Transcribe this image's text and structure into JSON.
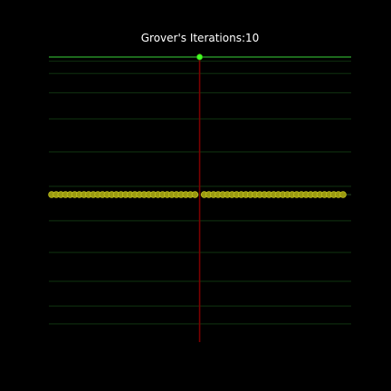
{
  "chart_data": {
    "type": "scatter",
    "title": "Grover's Iterations:10",
    "xlabel": "",
    "ylabel": "",
    "grid": true,
    "xlim": [
      0,
      63
    ],
    "ylim": [
      -1.0,
      1.0
    ],
    "marked_state": 32,
    "grid_levels": [
      0.97,
      0.88,
      0.74,
      0.55,
      0.31,
      0.06,
      -0.19,
      -0.42,
      -0.63,
      -0.81,
      -0.94
    ],
    "series": [
      {
        "x": [
          0,
          1,
          2,
          3,
          4,
          5,
          6,
          7,
          8,
          9,
          10,
          11,
          12,
          13,
          14,
          15,
          16,
          17,
          18,
          19,
          20,
          21,
          22,
          23,
          24,
          25,
          26,
          27,
          28,
          29,
          30,
          31,
          33,
          34,
          35,
          36,
          37,
          38,
          39,
          40,
          41,
          42,
          43,
          44,
          45,
          46,
          47,
          48,
          49,
          50,
          51,
          52,
          53,
          54,
          55,
          56,
          57,
          58,
          59,
          60,
          61,
          62,
          63
        ],
        "y": [
          0,
          0,
          0,
          0,
          0,
          0,
          0,
          0,
          0,
          0,
          0,
          0,
          0,
          0,
          0,
          0,
          0,
          0,
          0,
          0,
          0,
          0,
          0,
          0,
          0,
          0,
          0,
          0,
          0,
          0,
          0,
          0,
          0,
          0,
          0,
          0,
          0,
          0,
          0,
          0,
          0,
          0,
          0,
          0,
          0,
          0,
          0,
          0,
          0,
          0,
          0,
          0,
          0,
          0,
          0,
          0,
          0,
          0,
          0,
          0,
          0,
          0,
          0
        ]
      },
      {
        "x": [
          32
        ],
        "y": [
          1.0
        ]
      }
    ],
    "colors": {
      "background": "#000000",
      "grid": "#0d2a0d",
      "target_line": "#2ea82e",
      "axis_line": "#7a0000",
      "amplitude_point": "#9a9a10",
      "amplitude_edge": "#c8c820",
      "marked_point": "#44ff22",
      "title": "#ffffff"
    }
  }
}
